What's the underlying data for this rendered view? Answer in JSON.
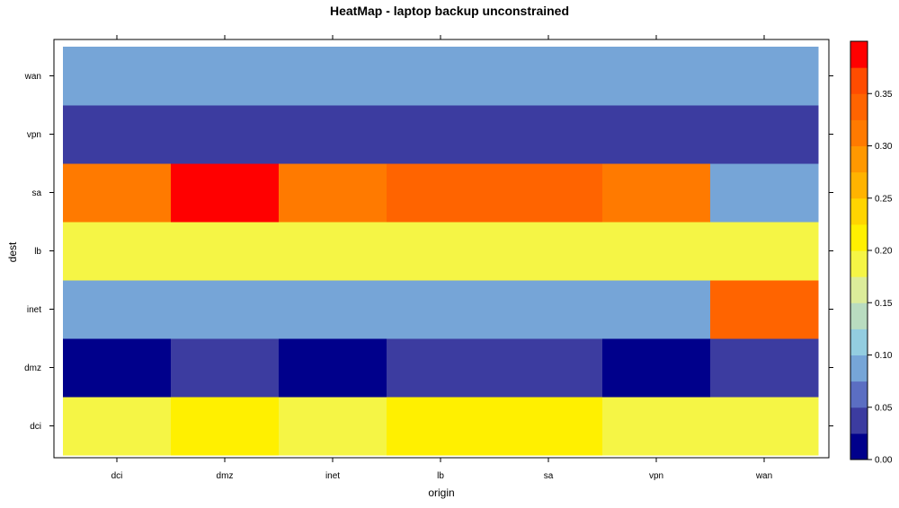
{
  "chart_data": {
    "type": "heatmap",
    "title": "HeatMap - laptop backup unconstrained",
    "xlabel": "origin",
    "ylabel": "dest",
    "x_categories": [
      "dci",
      "dmz",
      "inet",
      "lb",
      "sa",
      "vpn",
      "wan"
    ],
    "y_categories": [
      "dci",
      "dmz",
      "inet",
      "lb",
      "sa",
      "vpn",
      "wan"
    ],
    "values": [
      [
        0.19,
        0.22,
        0.19,
        0.22,
        0.22,
        0.19,
        0.19
      ],
      [
        0.0,
        0.04,
        0.0,
        0.04,
        0.04,
        0.0,
        0.04
      ],
      [
        0.08,
        0.08,
        0.08,
        0.08,
        0.08,
        0.08,
        0.34
      ],
      [
        0.19,
        0.19,
        0.19,
        0.19,
        0.19,
        0.19,
        0.19
      ],
      [
        0.31,
        0.38,
        0.31,
        0.34,
        0.34,
        0.31,
        0.08
      ],
      [
        0.04,
        0.04,
        0.04,
        0.04,
        0.04,
        0.04,
        0.04
      ],
      [
        0.08,
        0.08,
        0.08,
        0.08,
        0.08,
        0.08,
        0.08
      ]
    ],
    "colorbar": {
      "range": [
        0.0,
        0.4
      ],
      "tick_labels": [
        "0.00",
        "0.05",
        "0.10",
        "0.15",
        "0.20",
        "0.25",
        "0.30",
        "0.35"
      ],
      "levels": [
        {
          "from": 0.0,
          "to": 0.025,
          "color": "#00008b"
        },
        {
          "from": 0.025,
          "to": 0.05,
          "color": "#3c3ca0"
        },
        {
          "from": 0.05,
          "to": 0.075,
          "color": "#5b6ec2"
        },
        {
          "from": 0.075,
          "to": 0.1,
          "color": "#76a5d7"
        },
        {
          "from": 0.1,
          "to": 0.125,
          "color": "#93cde0"
        },
        {
          "from": 0.125,
          "to": 0.15,
          "color": "#b9dcc0"
        },
        {
          "from": 0.15,
          "to": 0.175,
          "color": "#dcec9a"
        },
        {
          "from": 0.175,
          "to": 0.2,
          "color": "#f5f545"
        },
        {
          "from": 0.2,
          "to": 0.225,
          "color": "#fff000"
        },
        {
          "from": 0.225,
          "to": 0.25,
          "color": "#ffd500"
        },
        {
          "from": 0.25,
          "to": 0.275,
          "color": "#ffb300"
        },
        {
          "from": 0.275,
          "to": 0.3,
          "color": "#ff9800"
        },
        {
          "from": 0.3,
          "to": 0.325,
          "color": "#ff7a00"
        },
        {
          "from": 0.325,
          "to": 0.35,
          "color": "#ff6400"
        },
        {
          "from": 0.35,
          "to": 0.375,
          "color": "#ff4c00"
        },
        {
          "from": 0.375,
          "to": 0.4,
          "color": "#ff0000"
        }
      ]
    }
  }
}
